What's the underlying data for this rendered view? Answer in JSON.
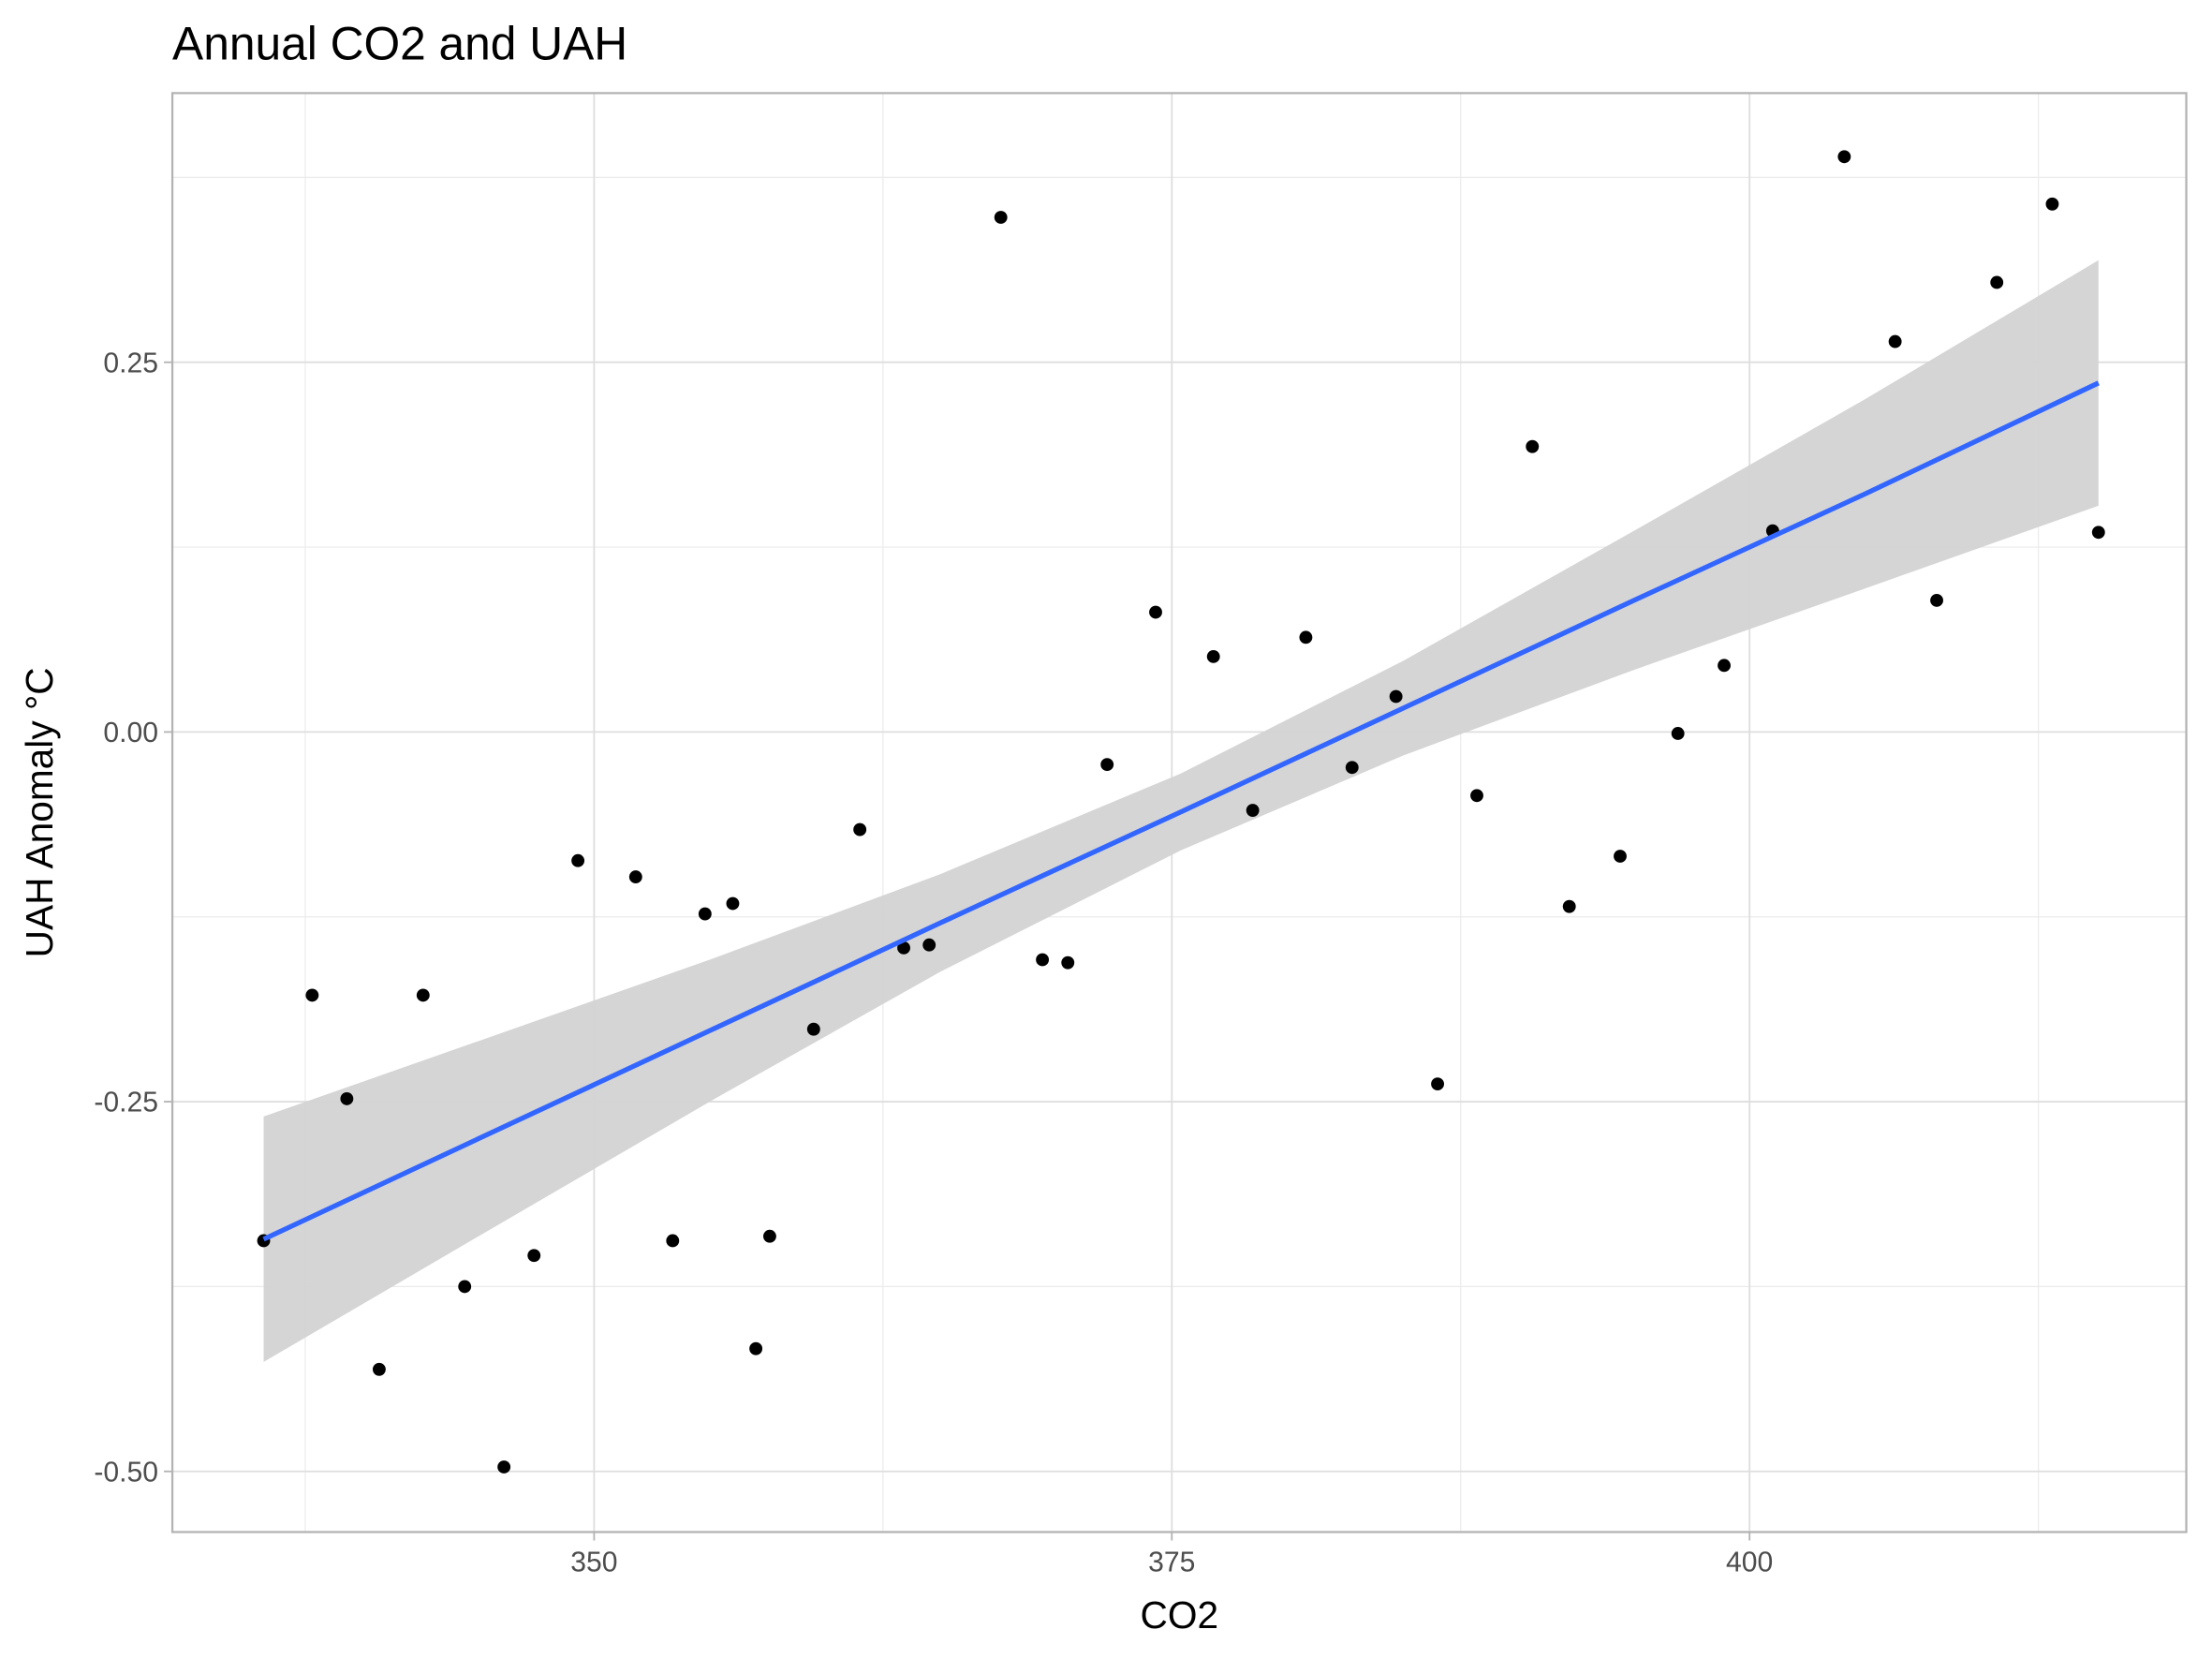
{
  "chart_data": {
    "type": "scatter",
    "title": "Annual CO2 and UAH",
    "xlabel": "CO2",
    "ylabel": "UAH Anomaly °C",
    "xlim": [
      331.75,
      418.9
    ],
    "ylim": [
      -0.541,
      0.432
    ],
    "xticks": [
      350,
      375,
      400
    ],
    "xtick_labels": [
      "350",
      "375",
      "400"
    ],
    "xminor": [
      337.5,
      362.5,
      387.5,
      412.5
    ],
    "yticks": [
      -0.5,
      -0.25,
      0,
      0.25
    ],
    "ytick_labels": [
      "-0.50",
      "-0.25",
      "0.00",
      "0.25"
    ],
    "yminor": [
      -0.375,
      -0.125,
      0.125,
      0.375
    ],
    "grid": true,
    "points": [
      [
        335.7,
        -0.344
      ],
      [
        337.8,
        -0.178
      ],
      [
        339.3,
        -0.248
      ],
      [
        340.7,
        -0.431
      ],
      [
        342.6,
        -0.178
      ],
      [
        344.4,
        -0.375
      ],
      [
        346.1,
        -0.497
      ],
      [
        347.4,
        -0.354
      ],
      [
        349.3,
        -0.087
      ],
      [
        351.8,
        -0.098
      ],
      [
        353.4,
        -0.344
      ],
      [
        354.8,
        -0.123
      ],
      [
        356.0,
        -0.116
      ],
      [
        357.0,
        -0.417
      ],
      [
        357.6,
        -0.341
      ],
      [
        359.5,
        -0.201
      ],
      [
        361.5,
        -0.066
      ],
      [
        363.4,
        -0.146
      ],
      [
        364.5,
        -0.144
      ],
      [
        367.6,
        0.348
      ],
      [
        369.4,
        -0.154
      ],
      [
        370.5,
        -0.156
      ],
      [
        372.2,
        -0.022
      ],
      [
        374.3,
        0.081
      ],
      [
        376.8,
        0.051
      ],
      [
        378.5,
        -0.053
      ],
      [
        380.8,
        0.064
      ],
      [
        382.8,
        -0.024
      ],
      [
        384.7,
        0.024
      ],
      [
        386.5,
        -0.238
      ],
      [
        388.2,
        -0.043
      ],
      [
        390.6,
        0.193
      ],
      [
        392.2,
        -0.118
      ],
      [
        394.4,
        -0.084
      ],
      [
        396.9,
        -0.001
      ],
      [
        398.9,
        0.045
      ],
      [
        401.0,
        0.136
      ],
      [
        404.1,
        0.389
      ],
      [
        406.3,
        0.264
      ],
      [
        408.1,
        0.089
      ],
      [
        410.7,
        0.304
      ],
      [
        413.1,
        0.357
      ],
      [
        415.1,
        0.135
      ]
    ],
    "fit": {
      "method": "lm",
      "x": [
        335.7,
        345,
        355,
        365,
        375.4,
        385,
        395,
        405,
        415.1
      ],
      "y": [
        -0.343,
        -0.275,
        -0.202,
        -0.129,
        -0.054,
        0.016,
        0.089,
        0.161,
        0.236
      ],
      "lower": [
        -0.426,
        -0.341,
        -0.25,
        -0.162,
        -0.08,
        -0.016,
        0.042,
        0.097,
        0.153
      ],
      "upper": [
        -0.26,
        -0.209,
        -0.154,
        -0.096,
        -0.028,
        0.048,
        0.136,
        0.225,
        0.319
      ]
    },
    "colors": {
      "points": "#000000",
      "line": "#3366FF",
      "band": "#D3D3D3",
      "grid": "#DEDEDE",
      "border": "#B3B3B3"
    }
  }
}
